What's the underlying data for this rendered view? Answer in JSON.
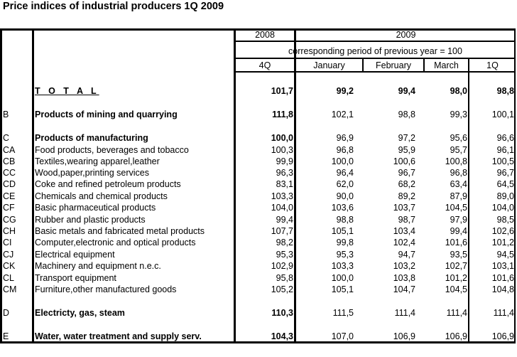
{
  "title": "Price indices of industrial producers 1Q 2009",
  "header": {
    "year_2008": "2008",
    "year_2009": "2009",
    "base_note": "corresponding period of previous year = 100",
    "columns": [
      "4Q",
      "January",
      "February",
      "March",
      "1Q"
    ]
  },
  "rows": [
    {
      "code": "",
      "label": "T O T A L",
      "values": [
        "101,7",
        "99,2",
        "99,4",
        "98,0",
        "98,8"
      ]
    },
    {
      "code": "B",
      "label": "Products of mining and quarrying",
      "values": [
        "111,8",
        "102,1",
        "98,8",
        "99,3",
        "100,1"
      ]
    },
    {
      "code": "C",
      "label": "Products of manufacturing",
      "values": [
        "100,0",
        "96,9",
        "97,2",
        "95,6",
        "96,6"
      ]
    },
    {
      "code": "CA",
      "label": "Food products, beverages and tobacco",
      "values": [
        "100,3",
        "96,8",
        "95,9",
        "95,7",
        "96,1"
      ]
    },
    {
      "code": "CB",
      "label": "Textiles,wearing apparel,leather",
      "values": [
        "99,9",
        "100,0",
        "100,6",
        "100,8",
        "100,5"
      ]
    },
    {
      "code": "CC",
      "label": "Wood,paper,printing services",
      "values": [
        "96,3",
        "96,4",
        "96,7",
        "96,8",
        "96,7"
      ]
    },
    {
      "code": "CD",
      "label": "Coke and refined petroleum products",
      "values": [
        "83,1",
        "62,0",
        "68,2",
        "63,4",
        "64,5"
      ]
    },
    {
      "code": "CE",
      "label": "Chemicals and chemical products",
      "values": [
        "103,3",
        "90,0",
        "89,2",
        "87,9",
        "89,0"
      ]
    },
    {
      "code": "CF",
      "label": "Basic pharmaceutical products",
      "values": [
        "104,0",
        "103,6",
        "103,7",
        "104,5",
        "104,0"
      ]
    },
    {
      "code": "CG",
      "label": "Rubber and plastic products",
      "values": [
        "99,4",
        "98,8",
        "98,7",
        "97,9",
        "98,5"
      ]
    },
    {
      "code": "CH",
      "label": "Basic metals and fabricated metal products",
      "values": [
        "107,7",
        "105,1",
        "103,4",
        "99,4",
        "102,6"
      ]
    },
    {
      "code": "CI",
      "label": "Computer,electronic and optical products",
      "values": [
        "98,2",
        "99,8",
        "102,4",
        "101,6",
        "101,2"
      ]
    },
    {
      "code": "CJ",
      "label": "Electrical equipment",
      "values": [
        "95,3",
        "95,3",
        "94,7",
        "93,5",
        "94,5"
      ]
    },
    {
      "code": "CK",
      "label": "Machinery and equipment n.e.c.",
      "values": [
        "102,9",
        "103,3",
        "103,2",
        "102,7",
        "103,1"
      ]
    },
    {
      "code": "CL",
      "label": "Transport equipment",
      "values": [
        "95,8",
        "100,0",
        "103,8",
        "101,2",
        "101,6"
      ]
    },
    {
      "code": "CM",
      "label": "Furniture,other manufactured goods",
      "values": [
        "105,2",
        "105,1",
        "104,7",
        "104,5",
        "104,8"
      ]
    },
    {
      "code": "D",
      "label": "Electricty, gas, steam",
      "values": [
        "110,3",
        "111,5",
        "111,4",
        "111,4",
        "111,4"
      ]
    },
    {
      "code": "E",
      "label": "Water, water treatment and supply serv.",
      "values": [
        "104,3",
        "107,0",
        "106,9",
        "106,9",
        "106,9"
      ]
    }
  ]
}
